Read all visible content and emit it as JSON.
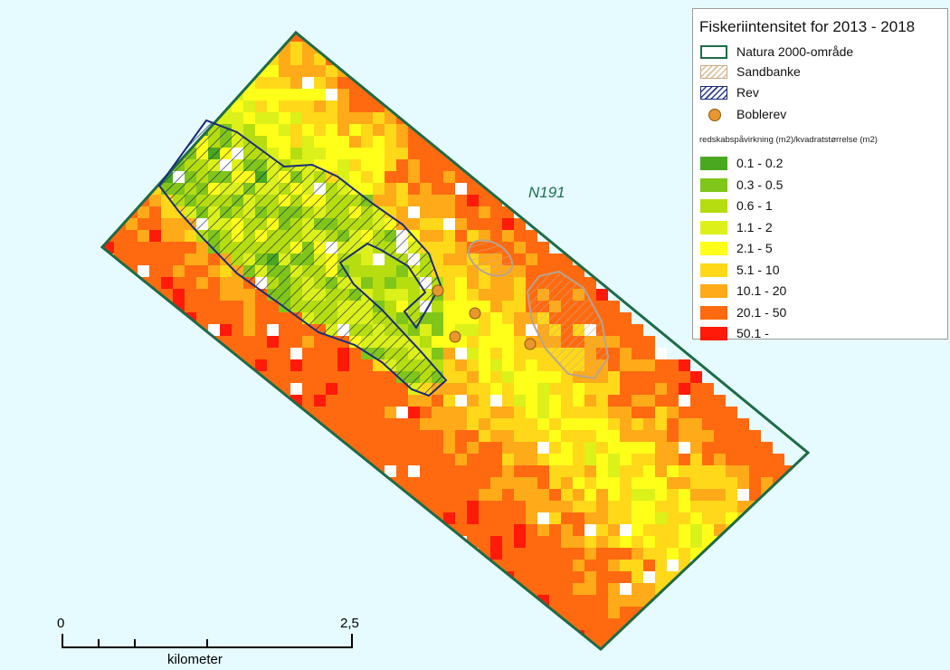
{
  "legend": {
    "title": "Fiskeriintensitet for 2013 - 2018",
    "layers": [
      {
        "label": "Natura 2000-område",
        "symbol": "outline-green-box"
      },
      {
        "label": "Sandbanke",
        "symbol": "tan-hatched-box"
      },
      {
        "label": "Rev",
        "symbol": "blue-hatched-box"
      },
      {
        "label": "Boblerev",
        "symbol": "orange-dot"
      }
    ],
    "subtitle": "redskabspåvirkning (m2)/kvadratstørrelse (m2)",
    "classes": [
      {
        "label": "0.1 - 0.2",
        "color": "#4aa820"
      },
      {
        "label": "0.3 - 0.5",
        "color": "#80c51a"
      },
      {
        "label": "0.6 - 1",
        "color": "#b5dd10"
      },
      {
        "label": "1.1 - 2",
        "color": "#dcf01a"
      },
      {
        "label": "2.1 - 5",
        "color": "#ffff19"
      },
      {
        "label": "5.1 - 10",
        "color": "#ffd81a"
      },
      {
        "label": "10.1 - 20",
        "color": "#ffaa19"
      },
      {
        "label": "20.1 - 50",
        "color": "#ff6a10"
      },
      {
        "label": "50.1 -",
        "color": "#ff1a0a"
      }
    ]
  },
  "map": {
    "area_label": "N191",
    "colors": {
      "sea": "#e6fbff",
      "natura_outline": "#1d6b46",
      "sandbank_outline": "#b8a38e",
      "reef_outline": "#1a2b7a",
      "bubble_reef": "#e8962e"
    }
  },
  "scalebar": {
    "start_label": "0",
    "end_label": "2,5",
    "unit": "kilometer"
  }
}
